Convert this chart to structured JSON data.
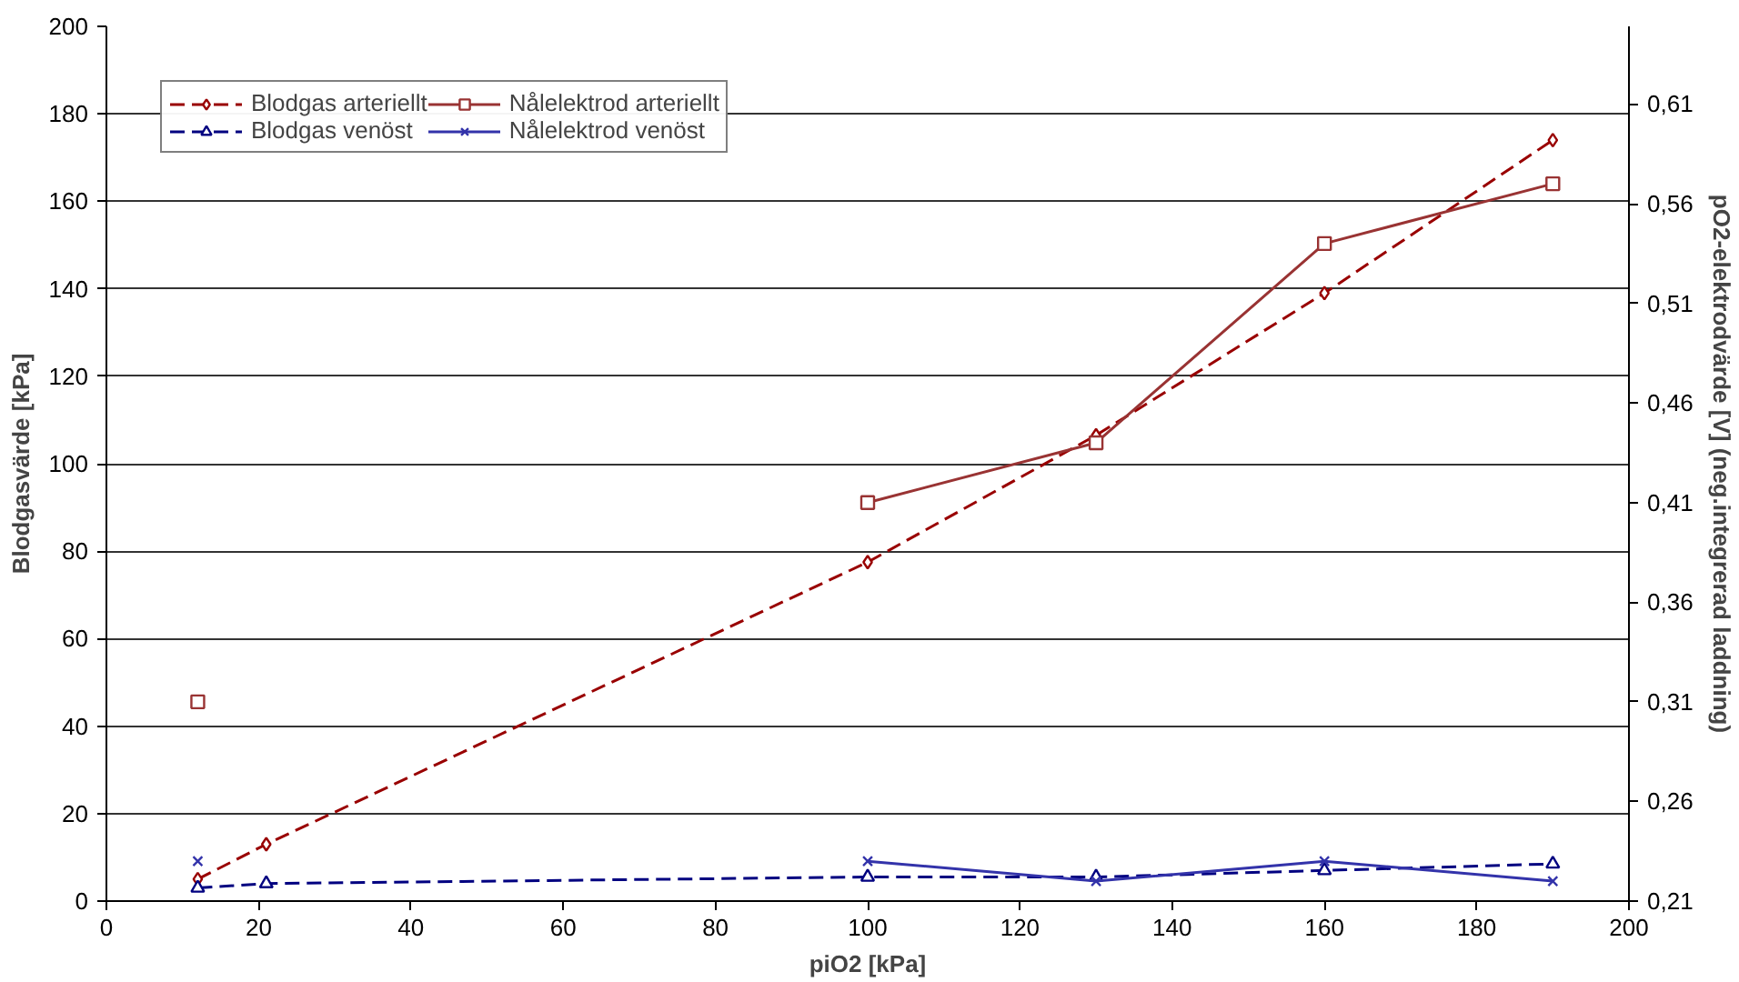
{
  "chart_data": {
    "type": "line",
    "xlabel": "piO2 [kPa]",
    "ylabel": "Blodgasvärde [kPa]",
    "y2label": "pO2-elektrodvärde [V] (neg.integrerad laddning)",
    "xlim": [
      0,
      200
    ],
    "xticks": [
      0,
      20,
      40,
      60,
      80,
      100,
      120,
      140,
      160,
      180,
      200
    ],
    "ylim": [
      0,
      200
    ],
    "yticks": [
      0,
      20,
      40,
      60,
      80,
      100,
      120,
      140,
      160,
      180,
      200
    ],
    "y2lim": [
      0.21,
      0.649
    ],
    "y2ticks": [
      {
        "value": 0.21,
        "label": "0,21"
      },
      {
        "value": 0.26,
        "label": "0,26"
      },
      {
        "value": 0.31,
        "label": "0,31"
      },
      {
        "value": 0.36,
        "label": "0,36"
      },
      {
        "value": 0.41,
        "label": "0,41"
      },
      {
        "value": 0.46,
        "label": "0,46"
      },
      {
        "value": 0.51,
        "label": "0,51"
      },
      {
        "value": 0.56,
        "label": "0,56"
      },
      {
        "value": 0.61,
        "label": "0,61"
      }
    ],
    "grid": "y",
    "legend": "top left",
    "series": [
      {
        "name": "Blodgas arteriellt",
        "color": "#990000",
        "marker": "diamond",
        "line_style": "dashed",
        "x": [
          12,
          21,
          100,
          130,
          160,
          190
        ],
        "values": [
          5,
          13,
          77.5,
          106.5,
          139,
          174
        ]
      },
      {
        "name": "Blodgas venöst",
        "color": "#000080",
        "marker": "triangle",
        "line_style": "dashed",
        "x": [
          12,
          21,
          100,
          130,
          160,
          190
        ],
        "values": [
          3,
          4,
          5.5,
          5.5,
          7,
          8.5
        ]
      },
      {
        "name": "Nålelektrod arteriellt",
        "color": "#993333",
        "marker": "square",
        "line_style": "solid",
        "axis": "y2",
        "x": [
          12,
          21,
          100,
          130,
          160,
          190
        ],
        "values": [
          0.31,
          null,
          0.41,
          0.44,
          0.54,
          0.57
        ]
      },
      {
        "name": "Nålelektrod venöst",
        "color": "#3333aa",
        "marker": "cross",
        "line_style": "solid",
        "axis": "y2",
        "x": [
          12,
          21,
          100,
          130,
          160,
          190
        ],
        "values": [
          0.23,
          null,
          0.23,
          0.22,
          0.23,
          0.22
        ]
      }
    ]
  }
}
